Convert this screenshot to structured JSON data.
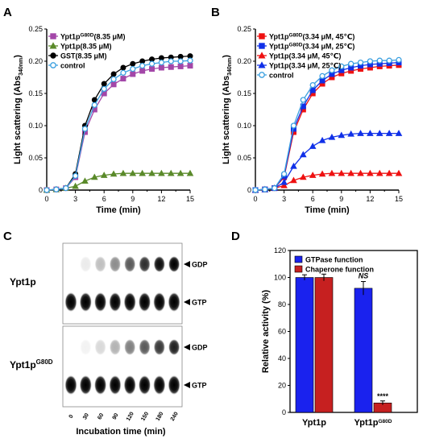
{
  "panels": {
    "a": "A",
    "b": "B",
    "c": "C",
    "d": "D"
  },
  "colors": {
    "purple": "#a347a8",
    "green": "#5a8a2a",
    "black": "#000000",
    "control": "#3ca0e0",
    "red": "#ee1111",
    "blue": "#1030e8",
    "gtpase_bar": "#1a22ee",
    "chaperone_bar": "#c62020"
  },
  "chart_data": [
    {
      "type": "line",
      "panel": "A",
      "xlabel": "Time (min)",
      "ylabel": "Light scattering (Abs340nm)",
      "xlim": [
        0,
        15
      ],
      "ylim": [
        0,
        0.25
      ],
      "xticks": [
        "0",
        "3",
        "6",
        "9",
        "12",
        "15"
      ],
      "yticks": [
        "0",
        "0.05",
        "0.10",
        "0.15",
        "0.20",
        "0.25"
      ],
      "x": [
        0,
        1,
        2,
        3,
        4,
        5,
        6,
        7,
        8,
        9,
        10,
        11,
        12,
        13,
        14,
        15
      ],
      "legend_position": "top-left",
      "series": [
        {
          "name": "Ypt1pG80D(8.35 μM)",
          "marker": "square",
          "color": "#a347a8",
          "filled": true,
          "values": [
            0.0,
            0.001,
            0.003,
            0.02,
            0.09,
            0.125,
            0.15,
            0.164,
            0.173,
            0.18,
            0.185,
            0.188,
            0.19,
            0.191,
            0.192,
            0.193
          ]
        },
        {
          "name": "Ypt1p(8.35 μM)",
          "marker": "triangle",
          "color": "#5a8a2a",
          "filled": true,
          "values": [
            0.0,
            0.001,
            0.003,
            0.006,
            0.014,
            0.02,
            0.023,
            0.025,
            0.026,
            0.026,
            0.026,
            0.026,
            0.026,
            0.026,
            0.026,
            0.026
          ]
        },
        {
          "name": "GST(8.35 μM)",
          "marker": "circle",
          "color": "#000000",
          "filled": true,
          "values": [
            0.0,
            0.001,
            0.003,
            0.025,
            0.1,
            0.14,
            0.165,
            0.18,
            0.19,
            0.196,
            0.2,
            0.203,
            0.205,
            0.206,
            0.207,
            0.208
          ]
        },
        {
          "name": "control",
          "marker": "circle",
          "color": "#3ca0e0",
          "filled": false,
          "values": [
            0.0,
            0.001,
            0.003,
            0.022,
            0.095,
            0.132,
            0.157,
            0.172,
            0.182,
            0.188,
            0.193,
            0.196,
            0.198,
            0.2,
            0.2,
            0.201
          ]
        }
      ]
    },
    {
      "type": "line",
      "panel": "B",
      "xlabel": "Time (min)",
      "ylabel": "Light scattering (Abs340nm)",
      "xlim": [
        0,
        15
      ],
      "ylim": [
        0,
        0.25
      ],
      "xticks": [
        "0",
        "3",
        "6",
        "9",
        "12",
        "15"
      ],
      "yticks": [
        "0",
        "0.05",
        "0.10",
        "0.15",
        "0.20",
        "0.25"
      ],
      "x": [
        0,
        1,
        2,
        3,
        4,
        5,
        6,
        7,
        8,
        9,
        10,
        11,
        12,
        13,
        14,
        15
      ],
      "legend_position": "top-left",
      "series": [
        {
          "name": "Ypt1pG80D(3.34 μM, 45℃)",
          "marker": "square",
          "color": "#ee1111",
          "filled": true,
          "values": [
            0.0,
            0.001,
            0.003,
            0.02,
            0.09,
            0.125,
            0.15,
            0.165,
            0.175,
            0.181,
            0.185,
            0.188,
            0.19,
            0.192,
            0.193,
            0.194
          ]
        },
        {
          "name": "Ypt1pG80D(3.34 μM, 25℃)",
          "marker": "square",
          "color": "#1030e8",
          "filled": true,
          "values": [
            0.0,
            0.001,
            0.003,
            0.022,
            0.095,
            0.13,
            0.155,
            0.17,
            0.18,
            0.186,
            0.19,
            0.193,
            0.195,
            0.196,
            0.197,
            0.198
          ]
        },
        {
          "name": "Ypt1p(3.34 μM, 45℃)",
          "marker": "triangle",
          "color": "#ee1111",
          "filled": true,
          "values": [
            0.0,
            0.001,
            0.003,
            0.007,
            0.015,
            0.02,
            0.023,
            0.025,
            0.026,
            0.026,
            0.026,
            0.026,
            0.026,
            0.026,
            0.026,
            0.026
          ]
        },
        {
          "name": "Ypt1p(3.34 μM, 25℃)",
          "marker": "triangle",
          "color": "#1030e8",
          "filled": true,
          "values": [
            0.0,
            0.001,
            0.003,
            0.012,
            0.037,
            0.055,
            0.068,
            0.077,
            0.082,
            0.085,
            0.087,
            0.088,
            0.088,
            0.088,
            0.088,
            0.088
          ]
        },
        {
          "name": "control",
          "marker": "circle",
          "color": "#3ca0e0",
          "filled": false,
          "values": [
            0.0,
            0.001,
            0.003,
            0.025,
            0.1,
            0.14,
            0.163,
            0.177,
            0.186,
            0.192,
            0.196,
            0.198,
            0.2,
            0.201,
            0.201,
            0.202
          ]
        }
      ]
    },
    {
      "type": "bar",
      "panel": "D",
      "ylabel": "Relative activity (%)",
      "ylim": [
        0,
        120
      ],
      "yticks": [
        "0",
        "20",
        "40",
        "60",
        "80",
        "100",
        "120"
      ],
      "categories": [
        "Ypt1p",
        "Ypt1pG80D"
      ],
      "legend_position": "top",
      "series": [
        {
          "name": "GTPase function",
          "color": "#1a22ee",
          "values": [
            100,
            92
          ],
          "errors": [
            2,
            5
          ]
        },
        {
          "name": "Chaperone function",
          "color": "#c62020",
          "values": [
            100,
            7
          ],
          "errors": [
            2.5,
            1.5
          ]
        }
      ],
      "annotations": [
        "NS",
        "****"
      ]
    }
  ],
  "tlc": {
    "xlabel": "Incubation time (min)",
    "lanes": [
      "0",
      "30",
      "60",
      "90",
      "120",
      "150",
      "180",
      "240"
    ],
    "rows": [
      {
        "label_main": "Ypt1p",
        "label_sup": "",
        "gdp_intensity": [
          0.0,
          0.08,
          0.25,
          0.45,
          0.65,
          0.82,
          0.95,
          1.0
        ],
        "gtp_intensity": [
          1,
          1,
          1,
          1,
          1,
          1,
          1,
          1
        ]
      },
      {
        "label_main": "Ypt1p",
        "label_sup": "G80D",
        "gdp_intensity": [
          0.0,
          0.05,
          0.15,
          0.3,
          0.5,
          0.65,
          0.78,
          0.88
        ],
        "gtp_intensity": [
          1,
          1,
          1,
          1,
          1,
          1,
          1,
          1
        ]
      }
    ],
    "spot_labels": {
      "gdp": "GDP",
      "gtp": "GTP"
    }
  }
}
